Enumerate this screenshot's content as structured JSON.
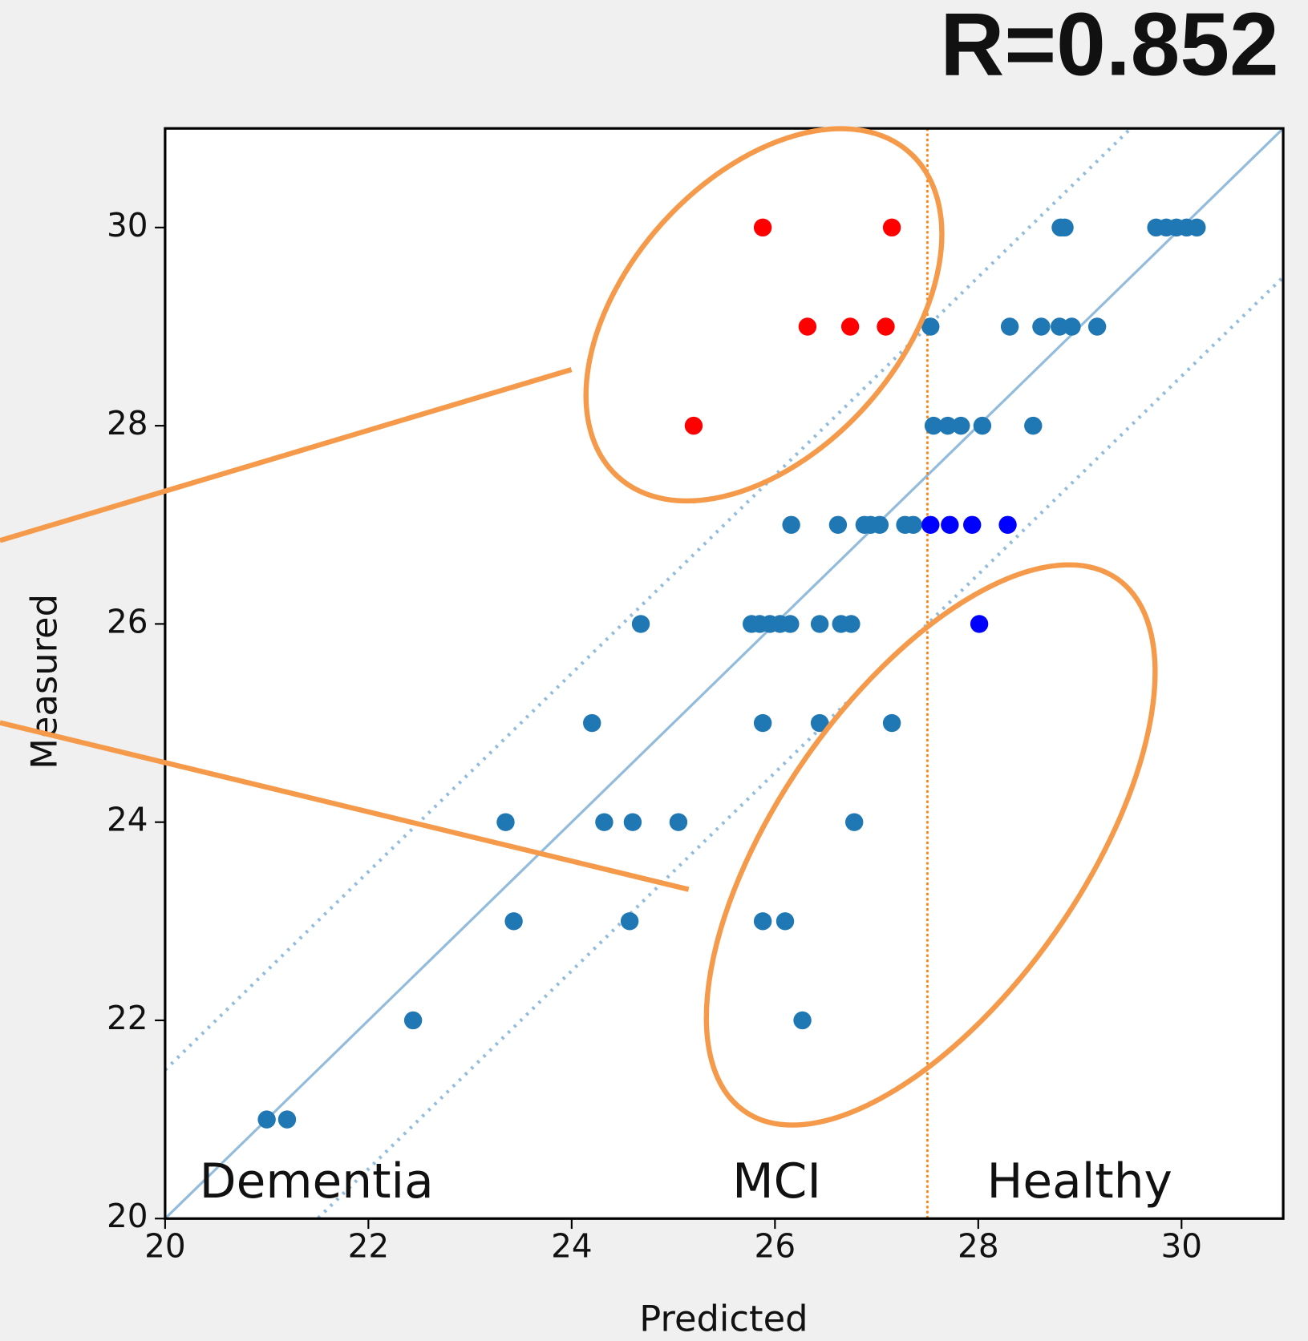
{
  "chart_data": {
    "type": "scatter",
    "title": "R=0.852",
    "x_label": "Predicted",
    "y_label": "Measured",
    "xlim": [
      20,
      31
    ],
    "ylim": [
      20,
      31
    ],
    "xticks": [
      20,
      22,
      24,
      26,
      28,
      30
    ],
    "yticks": [
      20,
      22,
      24,
      26,
      28,
      30
    ],
    "diagonal_color": "#93bcdc",
    "diagonal_offset": 1.5,
    "threshold_x": 27.5,
    "threshold_color": "#ff7f0e",
    "annotations": [
      "Dementia",
      "MCI",
      "Healthy"
    ],
    "series": [
      {
        "color": "#1f77b4",
        "x": [
          28.81,
          28.85,
          29.75,
          29.85,
          29.95,
          30.05,
          30.15,
          27.53,
          28.31,
          28.62,
          28.8,
          28.92,
          29.17,
          27.56,
          27.7,
          27.83,
          28.04,
          28.54,
          26.16,
          26.62,
          26.88,
          26.94,
          27.03,
          27.28,
          27.36,
          24.68,
          25.77,
          25.85,
          25.95,
          26.05,
          26.15,
          26.44,
          26.65,
          26.75,
          24.2,
          25.88,
          26.44,
          27.15,
          23.35,
          24.32,
          24.6,
          25.05,
          26.78,
          23.43,
          24.57,
          25.88,
          26.1,
          22.44,
          26.27,
          21.0,
          21.2
        ],
        "values": [
          30,
          30,
          30,
          30,
          30,
          30,
          30,
          29,
          29,
          29,
          29,
          29,
          29,
          28,
          28,
          28,
          28,
          28,
          27,
          27,
          27,
          27,
          27,
          27,
          27,
          26,
          26,
          26,
          26,
          26,
          26,
          26,
          26,
          26,
          25,
          25,
          25,
          25,
          24,
          24,
          24,
          24,
          24,
          23,
          23,
          23,
          23,
          22,
          22,
          21,
          21
        ]
      },
      {
        "color": "#ff0000",
        "x": [
          25.88,
          27.15,
          26.32,
          26.74,
          27.09,
          25.2
        ],
        "values": [
          30,
          30,
          29,
          29,
          29,
          28
        ]
      },
      {
        "color": "#0000ff",
        "x": [
          27.53,
          27.72,
          27.94,
          28.29,
          28.01
        ],
        "values": [
          27,
          27,
          27,
          27,
          26
        ]
      }
    ]
  }
}
